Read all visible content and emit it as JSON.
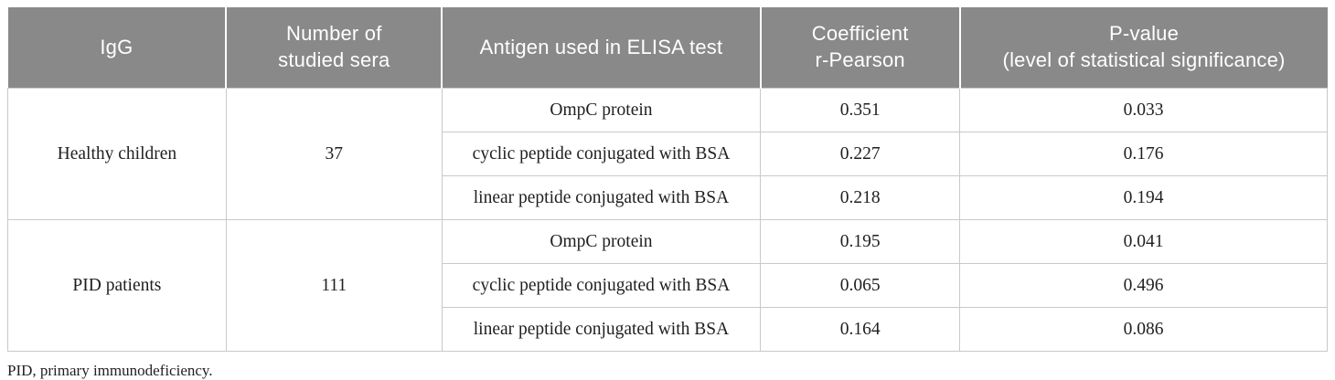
{
  "table": {
    "header": {
      "igg": {
        "lines": [
          "IgG"
        ]
      },
      "sera": {
        "lines": [
          "Number of",
          "studied sera"
        ]
      },
      "antigen": {
        "lines": [
          "Antigen used in ELISA test"
        ]
      },
      "coefficient": {
        "lines": [
          "Coefficient",
          "r-Pearson"
        ]
      },
      "pvalue": {
        "lines": [
          "P-value",
          "(level of statistical significance)"
        ]
      }
    },
    "groups": [
      {
        "igg": "Healthy children",
        "n_sera": "37",
        "rows": [
          {
            "antigen": "OmpC protein",
            "r": "0.351",
            "p": "0.033"
          },
          {
            "antigen": "cyclic peptide conjugated with BSA",
            "r": "0.227",
            "p": "0.176"
          },
          {
            "antigen": "linear peptide conjugated with BSA",
            "r": "0.218",
            "p": "0.194"
          }
        ]
      },
      {
        "igg": "PID patients",
        "n_sera": "111",
        "rows": [
          {
            "antigen": "OmpC protein",
            "r": "0.195",
            "p": "0.041"
          },
          {
            "antigen": "cyclic peptide conjugated with BSA",
            "r": "0.065",
            "p": "0.496"
          },
          {
            "antigen": "linear peptide conjugated with BSA",
            "r": "0.164",
            "p": "0.086"
          }
        ]
      }
    ]
  },
  "footnote": "PID, primary immunodeficiency.",
  "colors": {
    "header_bg": "#898989",
    "header_text": "#ffffff",
    "body_border": "#c9c9c9",
    "body_text": "#1f1f1f"
  }
}
